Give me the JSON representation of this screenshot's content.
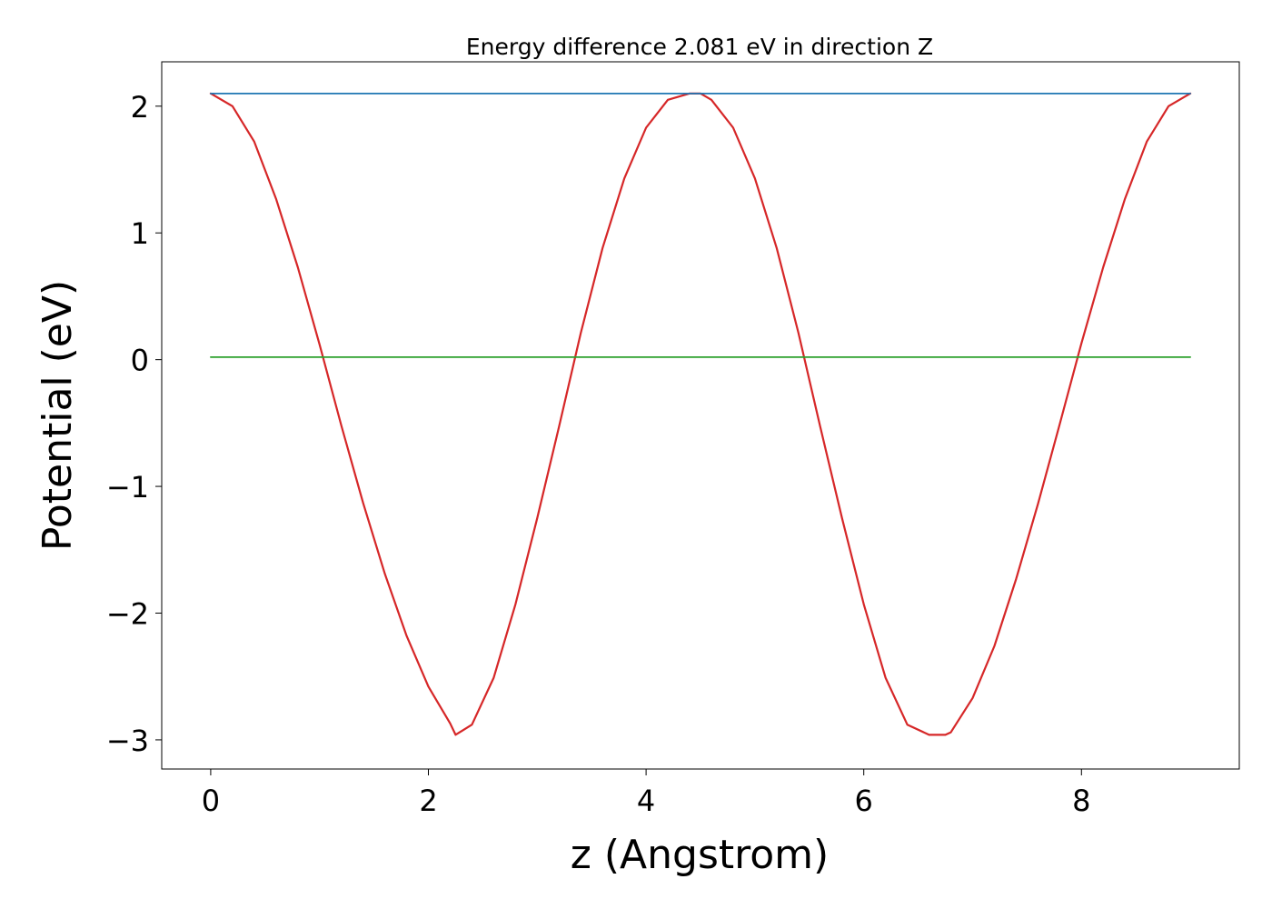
{
  "chart_data": {
    "type": "line",
    "title": "Energy difference 2.081 eV in direction Z",
    "xlabel": "z (Angstrom)",
    "ylabel": "Potential (eV)",
    "xlim": [
      -0.45,
      9.45
    ],
    "ylim": [
      -3.23,
      2.35
    ],
    "x_ticks": [
      0,
      2,
      4,
      6,
      8
    ],
    "x_tick_labels": [
      "0",
      "2",
      "4",
      "6",
      "8"
    ],
    "y_ticks": [
      -3,
      -2,
      -1,
      0,
      1,
      2
    ],
    "y_tick_labels": [
      "−3",
      "−2",
      "−1",
      "0",
      "1",
      "2"
    ],
    "grid": false,
    "legend": "none",
    "series": [
      {
        "color": "#d62728",
        "x": [
          0.0,
          0.2,
          0.4,
          0.6,
          0.8,
          1.0,
          1.2,
          1.4,
          1.6,
          1.8,
          2.0,
          2.2,
          2.25,
          2.4,
          2.6,
          2.8,
          3.0,
          3.2,
          3.4,
          3.6,
          3.8,
          4.0,
          4.2,
          4.4,
          4.5,
          4.6,
          4.8,
          5.0,
          5.2,
          5.4,
          5.6,
          5.8,
          6.0,
          6.2,
          6.4,
          6.6,
          6.75,
          6.8,
          7.0,
          7.2,
          7.4,
          7.6,
          7.8,
          8.0,
          8.2,
          8.4,
          8.6,
          8.8,
          9.0
        ],
        "values": [
          2.1,
          2.0,
          1.72,
          1.27,
          0.73,
          0.12,
          -0.52,
          -1.13,
          -1.69,
          -2.18,
          -2.58,
          -2.87,
          -2.96,
          -2.88,
          -2.51,
          -1.93,
          -1.25,
          -0.53,
          0.21,
          0.88,
          1.43,
          1.83,
          2.05,
          2.1,
          2.1,
          2.05,
          1.83,
          1.43,
          0.88,
          0.21,
          -0.53,
          -1.25,
          -1.93,
          -2.51,
          -2.88,
          -2.96,
          -2.96,
          -2.94,
          -2.67,
          -2.26,
          -1.73,
          -1.14,
          -0.51,
          0.13,
          0.73,
          1.27,
          1.72,
          2.0,
          2.1
        ]
      },
      {
        "color": "#1f77b4",
        "x": [
          0.0,
          9.0
        ],
        "values": [
          2.1,
          2.1
        ]
      },
      {
        "color": "#2ca02c",
        "x": [
          0.0,
          9.0
        ],
        "values": [
          0.02,
          0.02
        ]
      }
    ]
  }
}
